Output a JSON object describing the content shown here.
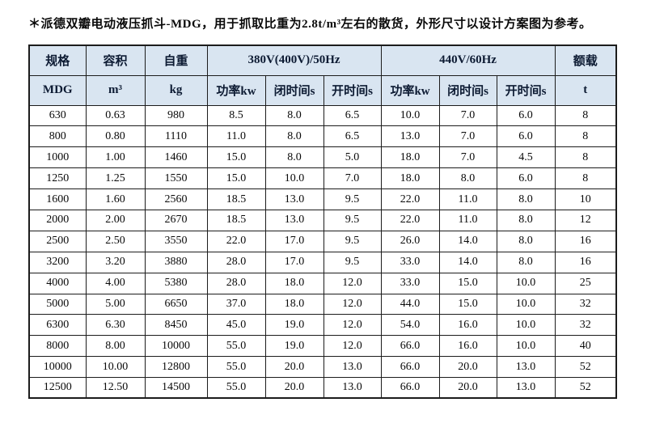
{
  "title": "＊派德双瓣电动液压抓斗-MDG，用于抓取比重为2.8t/m³左右的散货，外形尺寸以设计方案图为参考。",
  "colors": {
    "header_bg": "#d9e5f1",
    "border": "#1c1c1c",
    "text": "#0a0a0a"
  },
  "table": {
    "header_groups": {
      "spec": "规格",
      "volume": "容积",
      "weight": "自重",
      "v380": "380V(400V)/50Hz",
      "v440": "440V/60Hz",
      "load": "额载"
    },
    "subheaders": [
      "MDG",
      "m³",
      "kg",
      "功率kw",
      "闭时间s",
      "开时间s",
      "功率kw",
      "闭时间s",
      "开时间s",
      "t"
    ],
    "rows": [
      [
        "630",
        "0.63",
        "980",
        "8.5",
        "8.0",
        "6.5",
        "10.0",
        "7.0",
        "6.0",
        "8"
      ],
      [
        "800",
        "0.80",
        "1110",
        "11.0",
        "8.0",
        "6.5",
        "13.0",
        "7.0",
        "6.0",
        "8"
      ],
      [
        "1000",
        "1.00",
        "1460",
        "15.0",
        "8.0",
        "5.0",
        "18.0",
        "7.0",
        "4.5",
        "8"
      ],
      [
        "1250",
        "1.25",
        "1550",
        "15.0",
        "10.0",
        "7.0",
        "18.0",
        "8.0",
        "6.0",
        "8"
      ],
      [
        "1600",
        "1.60",
        "2560",
        "18.5",
        "13.0",
        "9.5",
        "22.0",
        "11.0",
        "8.0",
        "10"
      ],
      [
        "2000",
        "2.00",
        "2670",
        "18.5",
        "13.0",
        "9.5",
        "22.0",
        "11.0",
        "8.0",
        "12"
      ],
      [
        "2500",
        "2.50",
        "3550",
        "22.0",
        "17.0",
        "9.5",
        "26.0",
        "14.0",
        "8.0",
        "16"
      ],
      [
        "3200",
        "3.20",
        "3880",
        "28.0",
        "17.0",
        "9.5",
        "33.0",
        "14.0",
        "8.0",
        "16"
      ],
      [
        "4000",
        "4.00",
        "5380",
        "28.0",
        "18.0",
        "12.0",
        "33.0",
        "15.0",
        "10.0",
        "25"
      ],
      [
        "5000",
        "5.00",
        "6650",
        "37.0",
        "18.0",
        "12.0",
        "44.0",
        "15.0",
        "10.0",
        "32"
      ],
      [
        "6300",
        "6.30",
        "8450",
        "45.0",
        "19.0",
        "12.0",
        "54.0",
        "16.0",
        "10.0",
        "32"
      ],
      [
        "8000",
        "8.00",
        "10000",
        "55.0",
        "19.0",
        "12.0",
        "66.0",
        "16.0",
        "10.0",
        "40"
      ],
      [
        "10000",
        "10.00",
        "12800",
        "55.0",
        "20.0",
        "13.0",
        "66.0",
        "20.0",
        "13.0",
        "52"
      ],
      [
        "12500",
        "12.50",
        "14500",
        "55.0",
        "20.0",
        "13.0",
        "66.0",
        "20.0",
        "13.0",
        "52"
      ]
    ]
  }
}
